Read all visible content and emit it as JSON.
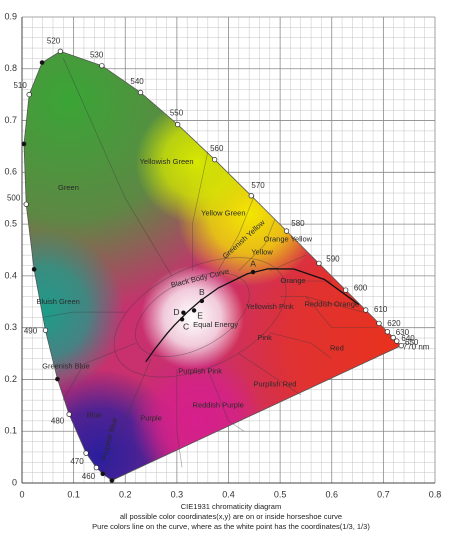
{
  "chart_data": {
    "type": "chromaticity",
    "xlim": [
      0,
      0.8
    ],
    "ylim": [
      0,
      0.9
    ],
    "xticks": [
      0,
      0.1,
      0.2,
      0.3,
      0.4,
      0.5,
      0.6,
      0.7,
      0.8
    ],
    "yticks": [
      0,
      0.1,
      0.2,
      0.3,
      0.4,
      0.5,
      0.6,
      0.7,
      0.8,
      0.9
    ],
    "grid": true,
    "locus": {
      "x": [
        0.1741,
        0.1566,
        0.144,
        0.1241,
        0.0913,
        0.0687,
        0.0454,
        0.0235,
        0.0082,
        0.0039,
        0.0139,
        0.0389,
        0.0743,
        0.1547,
        0.2296,
        0.3016,
        0.3731,
        0.4441,
        0.5125,
        0.5752,
        0.627,
        0.6658,
        0.6915,
        0.7079,
        0.719,
        0.726,
        0.7347
      ],
      "y": [
        0.005,
        0.0177,
        0.0297,
        0.0578,
        0.1327,
        0.2007,
        0.295,
        0.4127,
        0.5384,
        0.6548,
        0.7502,
        0.812,
        0.8338,
        0.8059,
        0.7543,
        0.6923,
        0.6245,
        0.5547,
        0.4866,
        0.4242,
        0.3725,
        0.334,
        0.3083,
        0.292,
        0.2809,
        0.274,
        0.2653
      ],
      "labels": [
        null,
        null,
        "460",
        "470",
        "480",
        null,
        "490",
        null,
        "500",
        null,
        "510",
        null,
        "520",
        "530",
        "540",
        "550",
        "560",
        "570",
        "580",
        "590",
        "600",
        "610",
        "620",
        "630",
        "640",
        "650",
        "770 nm"
      ]
    },
    "black_body_curve": {
      "name": "Black Body Curve",
      "x": [
        0.2399,
        0.2565,
        0.2806,
        0.2952,
        0.3221,
        0.3451,
        0.3805,
        0.4369,
        0.477,
        0.5267,
        0.5857,
        0.6528
      ],
      "y": [
        0.2342,
        0.2577,
        0.2883,
        0.3048,
        0.3318,
        0.3516,
        0.3768,
        0.4041,
        0.4137,
        0.4133,
        0.3931,
        0.3444
      ]
    },
    "illuminants": {
      "names": [
        "A",
        "B",
        "C",
        "D",
        "E"
      ],
      "x": [
        0.4476,
        0.3484,
        0.3101,
        0.3127,
        0.3333
      ],
      "y": [
        0.4074,
        0.3516,
        0.3162,
        0.329,
        0.3333
      ]
    },
    "regions": [
      "Green",
      "Yellowish Green",
      "Yellow Green",
      "Greenish Yellow",
      "Yellow",
      "Orange Yellow",
      "Orange",
      "Reddish Orange",
      "Yellowish Pink",
      "Pink",
      "Red",
      "Bluish Green",
      "Greenish Blue",
      "Blue",
      "Purplish Blue",
      "Purple",
      "Reddish Purple",
      "Purplish Pink",
      "Purplish Red",
      "Equal Energy"
    ],
    "caption": [
      "CIE1931 chromaticity diagram",
      "all possible color coordinates(x,y) are on or inside horseshoe curve",
      "Pure colors line on the curve, where as the white point has the coordinates(1/3,  1/3)"
    ]
  }
}
